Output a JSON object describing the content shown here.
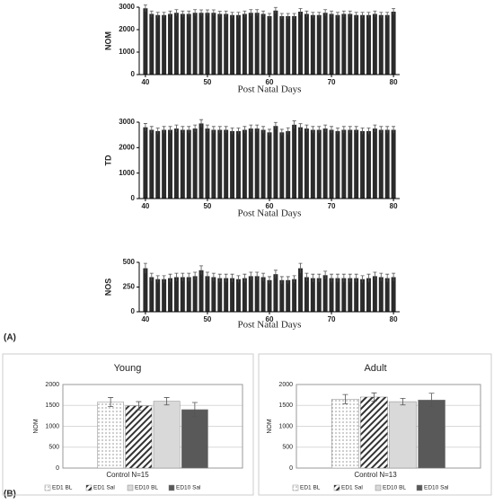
{
  "panel_labels": [
    "(A)",
    "(B)"
  ],
  "chart_data": [
    {
      "type": "bar",
      "y_label": "NOM",
      "x_label": "Post Natal Days",
      "color": "#2b2b2b",
      "x": [
        40,
        41,
        42,
        43,
        44,
        45,
        46,
        47,
        48,
        49,
        50,
        51,
        52,
        53,
        54,
        55,
        56,
        57,
        58,
        59,
        60,
        61,
        62,
        63,
        64,
        65,
        66,
        67,
        68,
        69,
        70,
        71,
        72,
        73,
        74,
        75,
        76,
        77,
        78,
        79,
        80
      ],
      "values": [
        2950,
        2700,
        2650,
        2650,
        2700,
        2750,
        2700,
        2700,
        2750,
        2750,
        2750,
        2750,
        2700,
        2700,
        2650,
        2650,
        2700,
        2750,
        2750,
        2700,
        2600,
        2850,
        2600,
        2600,
        2600,
        2800,
        2700,
        2650,
        2650,
        2750,
        2700,
        2650,
        2700,
        2700,
        2650,
        2650,
        2650,
        2700,
        2650,
        2650,
        2800
      ],
      "errors": [
        150,
        130,
        120,
        120,
        130,
        140,
        130,
        130,
        140,
        130,
        130,
        130,
        120,
        130,
        120,
        120,
        130,
        140,
        140,
        130,
        120,
        140,
        120,
        120,
        120,
        140,
        130,
        120,
        120,
        140,
        130,
        120,
        130,
        130,
        120,
        120,
        120,
        130,
        120,
        120,
        140
      ],
      "xlim": [
        39,
        81
      ],
      "ylim": [
        0,
        3000
      ],
      "xticks": [
        40,
        50,
        60,
        70,
        80
      ],
      "yticks": [
        0,
        1000,
        2000,
        3000
      ]
    },
    {
      "type": "bar",
      "y_label": "TD",
      "x_label": "Post Natal Days",
      "color": "#2b2b2b",
      "x": [
        40,
        41,
        42,
        43,
        44,
        45,
        46,
        47,
        48,
        49,
        50,
        51,
        52,
        53,
        54,
        55,
        56,
        57,
        58,
        59,
        60,
        61,
        62,
        63,
        64,
        65,
        66,
        67,
        68,
        69,
        70,
        71,
        72,
        73,
        74,
        75,
        76,
        77,
        78,
        79,
        80
      ],
      "values": [
        2800,
        2700,
        2650,
        2700,
        2700,
        2750,
        2700,
        2700,
        2750,
        2950,
        2750,
        2700,
        2700,
        2700,
        2650,
        2650,
        2700,
        2750,
        2750,
        2700,
        2600,
        2850,
        2600,
        2650,
        2900,
        2800,
        2750,
        2700,
        2700,
        2750,
        2700,
        2650,
        2700,
        2700,
        2700,
        2650,
        2650,
        2750,
        2700,
        2700,
        2700
      ],
      "errors": [
        150,
        130,
        120,
        130,
        130,
        140,
        130,
        130,
        140,
        150,
        140,
        130,
        130,
        130,
        120,
        120,
        130,
        140,
        140,
        130,
        120,
        140,
        120,
        130,
        150,
        140,
        140,
        130,
        130,
        140,
        130,
        120,
        130,
        130,
        130,
        120,
        120,
        140,
        130,
        130,
        130
      ],
      "xlim": [
        39,
        81
      ],
      "ylim": [
        0,
        3000
      ],
      "xticks": [
        40,
        50,
        60,
        70,
        80
      ],
      "yticks": [
        0,
        1000,
        2000,
        3000
      ]
    },
    {
      "type": "bar",
      "y_label": "NOS",
      "x_label": "Post Natal Days",
      "color": "#2b2b2b",
      "x": [
        40,
        41,
        42,
        43,
        44,
        45,
        46,
        47,
        48,
        49,
        50,
        51,
        52,
        53,
        54,
        55,
        56,
        57,
        58,
        59,
        60,
        61,
        62,
        63,
        64,
        65,
        66,
        67,
        68,
        69,
        70,
        71,
        72,
        73,
        74,
        75,
        76,
        77,
        78,
        79,
        80
      ],
      "values": [
        440,
        350,
        330,
        330,
        340,
        350,
        350,
        350,
        360,
        420,
        360,
        350,
        340,
        340,
        340,
        330,
        340,
        360,
        360,
        350,
        320,
        380,
        320,
        320,
        330,
        440,
        350,
        340,
        340,
        370,
        340,
        340,
        340,
        340,
        340,
        330,
        340,
        360,
        350,
        340,
        350
      ],
      "errors": [
        50,
        40,
        35,
        35,
        40,
        40,
        40,
        40,
        40,
        45,
        40,
        40,
        40,
        40,
        40,
        35,
        40,
        40,
        40,
        40,
        35,
        40,
        35,
        35,
        35,
        50,
        40,
        40,
        40,
        40,
        40,
        40,
        40,
        40,
        40,
        35,
        40,
        40,
        40,
        40,
        40
      ],
      "xlim": [
        39,
        81
      ],
      "ylim": [
        0,
        500
      ],
      "xticks": [
        40,
        50,
        60,
        70,
        80
      ],
      "yticks": [
        0,
        250,
        500
      ]
    },
    {
      "type": "grouped_bar",
      "title": "Young",
      "y_label": "NOM",
      "x_label": "Control N=15",
      "grid": true,
      "legend": "bottom",
      "series": [
        {
          "name": "ED1 BL",
          "color": "#ffffff",
          "pattern": "dots",
          "values": [
            1580
          ],
          "errors": [
            110
          ]
        },
        {
          "name": "ED1 Sal",
          "color": "#ffffff",
          "pattern": "hatch",
          "values": [
            1490
          ],
          "errors": [
            100
          ]
        },
        {
          "name": "ED10 BL",
          "color": "#d9d9d9",
          "pattern": "solid",
          "values": [
            1600
          ],
          "errors": [
            90
          ]
        },
        {
          "name": "ED10 Sal",
          "color": "#595959",
          "pattern": "solid",
          "values": [
            1400
          ],
          "errors": [
            170
          ]
        }
      ],
      "ylim": [
        0,
        2000
      ],
      "yticks": [
        0,
        500,
        1000,
        1500,
        2000
      ]
    },
    {
      "type": "grouped_bar",
      "title": "Adult",
      "y_label": "NOM",
      "x_label": "Control N=13",
      "grid": true,
      "legend": "bottom",
      "series": [
        {
          "name": "ED1 BL",
          "color": "#ffffff",
          "pattern": "dots",
          "values": [
            1650
          ],
          "errors": [
            110
          ]
        },
        {
          "name": "ED1 Sal",
          "color": "#ffffff",
          "pattern": "hatch",
          "values": [
            1700
          ],
          "errors": [
            100
          ]
        },
        {
          "name": "ED10 BL",
          "color": "#d9d9d9",
          "pattern": "solid",
          "values": [
            1590
          ],
          "errors": [
            80
          ]
        },
        {
          "name": "ED10 Sal",
          "color": "#595959",
          "pattern": "solid",
          "values": [
            1630
          ],
          "errors": [
            160
          ]
        }
      ],
      "ylim": [
        0,
        2000
      ],
      "yticks": [
        0,
        500,
        1000,
        1500,
        2000
      ]
    }
  ]
}
